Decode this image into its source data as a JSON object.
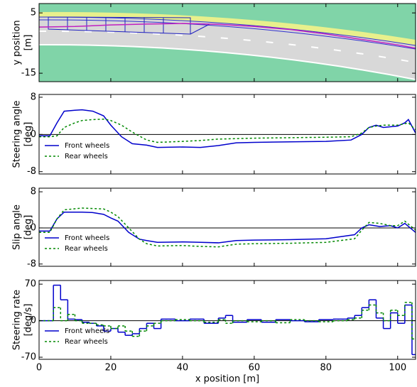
{
  "chart_data": [
    {
      "type": "line",
      "ylabel": [
        "y position",
        "[m]"
      ],
      "x": [
        0,
        10,
        20,
        30,
        40,
        50,
        60,
        70,
        80,
        90,
        100,
        105
      ],
      "series": [
        {
          "color": "#c020c0",
          "values": [
            0.3,
            0.5,
            1,
            1.3,
            1.5,
            1.2,
            0.5,
            -0.5,
            -2,
            -3.8,
            -5.6,
            -6.7
          ]
        }
      ],
      "xlim": [
        0,
        105
      ],
      "xticks": [
        0,
        20,
        40,
        60,
        80,
        100
      ],
      "ylim": [
        -17.8,
        8.1
      ],
      "yticks": [
        5,
        -15
      ]
    },
    {
      "type": "line",
      "ylabel": [
        "Steering angle",
        "[deg]"
      ],
      "x": [
        0,
        3,
        5,
        7,
        10,
        12,
        15,
        18,
        20,
        23,
        26,
        30,
        33,
        40,
        45,
        50,
        55,
        60,
        70,
        80,
        87,
        90,
        92,
        94,
        96,
        100,
        102,
        103,
        105
      ],
      "series": [
        {
          "name": "Front wheels",
          "color": "#0000cc",
          "dashed": false,
          "values": [
            -0.3,
            -0.3,
            2.5,
            5,
            5.2,
            5.3,
            5,
            4,
            2,
            -0.5,
            -2,
            -2.3,
            -2.8,
            -2.7,
            -2.8,
            -2.4,
            -1.8,
            -1.7,
            -1.6,
            -1.5,
            -1.2,
            0,
            1.5,
            2,
            1.5,
            1.8,
            2.5,
            3.2,
            0.3
          ]
        },
        {
          "name": "Rear wheels",
          "color": "#008800",
          "dashed": true,
          "values": [
            -0.5,
            -0.5,
            -0.3,
            1.5,
            2.5,
            3,
            3.2,
            3.3,
            3,
            2,
            0.5,
            -1.2,
            -1.7,
            -1.5,
            -1.3,
            -1,
            -0.9,
            -0.8,
            -0.7,
            -0.6,
            -0.5,
            0.3,
            1.5,
            1.8,
            2,
            2,
            2.3,
            2.5,
            1
          ]
        }
      ],
      "hline": 0,
      "xlim": [
        0,
        105
      ],
      "xticks": [
        0,
        20,
        40,
        60,
        80,
        100
      ],
      "ylim": [
        -8.5,
        8.6
      ],
      "yticks": [
        8,
        0,
        -8
      ]
    },
    {
      "type": "line",
      "ylabel": [
        "Slip angle",
        "[deg]"
      ],
      "x": [
        0,
        3,
        5,
        7,
        12,
        15,
        18,
        20,
        22,
        25,
        28,
        30,
        33,
        40,
        45,
        50,
        55,
        60,
        70,
        80,
        88,
        90,
        92,
        95,
        98,
        100,
        102,
        105
      ],
      "series": [
        {
          "name": "Front wheels",
          "color": "#0000cc",
          "dashed": false,
          "values": [
            -0.7,
            -0.7,
            2,
            3.5,
            3.5,
            3.4,
            3,
            2.2,
            1.5,
            -1,
            -2.5,
            -2.8,
            -3.2,
            -3.1,
            -3.2,
            -3.3,
            -2.8,
            -2.7,
            -2.6,
            -2.4,
            -1.5,
            0,
            0.7,
            0.3,
            0.5,
            0,
            1,
            -1
          ]
        },
        {
          "name": "Rear wheels",
          "color": "#008800",
          "dashed": true,
          "values": [
            -1,
            -1,
            2,
            4,
            4.4,
            4.3,
            4.2,
            3.5,
            2.5,
            0,
            -2.5,
            -3.5,
            -4,
            -3.9,
            -4.1,
            -4.2,
            -3.6,
            -3.5,
            -3.4,
            -3.2,
            -2.4,
            -0.5,
            1.2,
            1,
            0.5,
            0.5,
            1.5,
            -0.5
          ]
        }
      ],
      "hline": 0,
      "xlim": [
        0,
        105
      ],
      "xticks": [
        0,
        20,
        40,
        60,
        80,
        100
      ],
      "ylim": [
        -8.5,
        8.8
      ],
      "yticks": [
        8,
        0,
        -8
      ]
    },
    {
      "type": "step",
      "ylabel": [
        "Steering rate",
        "[deg/s]"
      ],
      "xlabel": "x position [m]",
      "x": [
        0,
        4,
        6,
        8,
        10,
        12,
        14,
        16,
        18,
        20,
        22,
        24,
        26,
        28,
        30,
        32,
        34,
        38,
        42,
        46,
        50,
        52,
        54,
        58,
        62,
        66,
        70,
        74,
        78,
        82,
        86,
        88,
        90,
        92,
        94,
        96,
        98,
        100,
        102,
        104,
        105
      ],
      "series": [
        {
          "name": "Front wheels",
          "color": "#0000cc",
          "dashed": false,
          "values": [
            0,
            68,
            40,
            3,
            2,
            -3,
            -5,
            -10,
            -20,
            -15,
            -22,
            -28,
            -25,
            -15,
            -5,
            -15,
            3,
            0,
            3,
            -5,
            5,
            10,
            -3,
            2,
            -3,
            2,
            0,
            -2,
            2,
            3,
            5,
            10,
            25,
            40,
            5,
            -15,
            15,
            -5,
            30,
            -65,
            null
          ]
        },
        {
          "name": "Rear wheels",
          "color": "#008800",
          "dashed": true,
          "values": [
            0,
            25,
            0,
            12,
            0,
            -5,
            -5,
            -8,
            -10,
            -15,
            -10,
            -20,
            -30,
            -20,
            -10,
            -5,
            0,
            2,
            0,
            -3,
            2,
            -5,
            0,
            -2,
            0,
            -4,
            2,
            0,
            -2,
            0,
            2,
            5,
            20,
            30,
            15,
            0,
            20,
            10,
            35,
            -35,
            null
          ]
        }
      ],
      "hline": 0,
      "xlim": [
        0,
        105
      ],
      "xticks": [
        0,
        20,
        40,
        60,
        80,
        100
      ],
      "ylim": [
        -74,
        77
      ],
      "yticks": [
        70,
        0,
        -70
      ]
    }
  ]
}
